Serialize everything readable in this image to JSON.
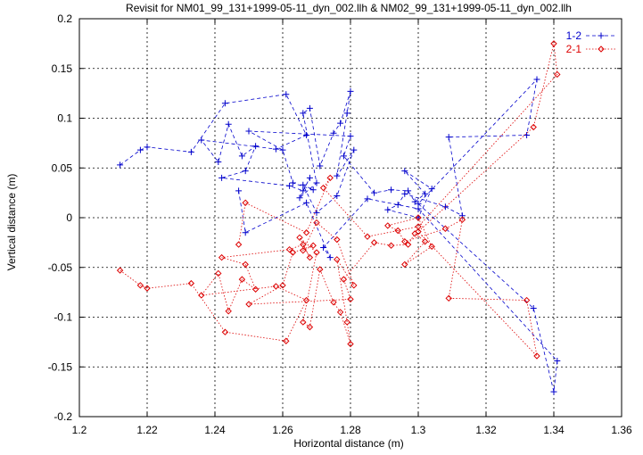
{
  "chart_data": {
    "type": "scatter",
    "title": "Revisit for NM01_99_131+1999-05-11_dyn_002.llh & NM02_99_131+1999-05-11_dyn_002.llh",
    "xlabel": "Horizontal distance (m)",
    "ylabel": "Vertical distance (m)",
    "xlim": [
      1.2,
      1.36
    ],
    "ylim": [
      -0.2,
      0.2
    ],
    "xticks": [
      "1.2",
      "1.22",
      "1.24",
      "1.26",
      "1.28",
      "1.3",
      "1.32",
      "1.34",
      "1.36"
    ],
    "yticks": [
      "-0.2",
      "-0.15",
      "-0.1",
      "-0.05",
      "0",
      "0.05",
      "0.1",
      "0.15",
      "0.2"
    ],
    "grid": true,
    "legend_position": "top-right",
    "series": [
      {
        "name": "1-2",
        "color": "#0000cc",
        "marker": "plus",
        "line": "dashed",
        "points": [
          [
            1.212,
            0.053
          ],
          [
            1.218,
            0.068
          ],
          [
            1.22,
            0.071
          ],
          [
            1.233,
            0.066
          ],
          [
            1.243,
            0.115
          ],
          [
            1.261,
            0.124
          ],
          [
            1.267,
            0.083
          ],
          [
            1.258,
            0.069
          ],
          [
            1.236,
            0.078
          ],
          [
            1.241,
            0.056
          ],
          [
            1.244,
            0.094
          ],
          [
            1.248,
            0.062
          ],
          [
            1.252,
            0.072
          ],
          [
            1.249,
            0.047
          ],
          [
            1.242,
            0.04
          ],
          [
            1.262,
            0.032
          ],
          [
            1.266,
            0.027
          ],
          [
            1.268,
            0.04
          ],
          [
            1.265,
            0.02
          ],
          [
            1.27,
            0.035
          ],
          [
            1.266,
            0.105
          ],
          [
            1.268,
            0.11
          ],
          [
            1.271,
            0.052
          ],
          [
            1.275,
            0.085
          ],
          [
            1.277,
            0.095
          ],
          [
            1.28,
            0.127
          ],
          [
            1.279,
            0.105
          ],
          [
            1.276,
            0.042
          ],
          [
            1.281,
            0.068
          ],
          [
            1.276,
            0.022
          ],
          [
            1.27,
            0.005
          ],
          [
            1.266,
            0.033
          ],
          [
            1.269,
            0.028
          ],
          [
            1.263,
            0.035
          ],
          [
            1.26,
            0.068
          ],
          [
            1.25,
            0.087
          ],
          [
            1.28,
            0.082
          ],
          [
            1.278,
            0.062
          ],
          [
            1.287,
            0.025
          ],
          [
            1.292,
            0.028
          ],
          [
            1.297,
            0.027
          ],
          [
            1.299,
            0.016
          ],
          [
            1.302,
            0.024
          ],
          [
            1.296,
            0.047
          ],
          [
            1.304,
            0.029
          ],
          [
            1.3,
            0.0
          ],
          [
            1.291,
            0.008
          ],
          [
            1.294,
            0.013
          ],
          [
            1.296,
            0.024
          ],
          [
            1.308,
            0.011
          ],
          [
            1.313,
            0.002
          ],
          [
            1.309,
            0.081
          ],
          [
            1.332,
            0.083
          ],
          [
            1.335,
            0.139
          ],
          [
            1.3,
            0.014
          ],
          [
            1.334,
            -0.091
          ],
          [
            1.34,
            -0.175
          ],
          [
            1.341,
            -0.144
          ],
          [
            1.3,
            0.009
          ],
          [
            1.285,
            0.019
          ],
          [
            1.272,
            -0.03
          ],
          [
            1.274,
            -0.04
          ],
          [
            1.267,
            0.015
          ],
          [
            1.249,
            -0.015
          ],
          [
            1.247,
            0.027
          ]
        ]
      },
      {
        "name": "2-1",
        "color": "#dd0000",
        "marker": "diamond",
        "line": "dotted",
        "points": [
          [
            1.212,
            -0.053
          ],
          [
            1.218,
            -0.068
          ],
          [
            1.22,
            -0.071
          ],
          [
            1.233,
            -0.066
          ],
          [
            1.243,
            -0.115
          ],
          [
            1.261,
            -0.124
          ],
          [
            1.267,
            -0.083
          ],
          [
            1.258,
            -0.069
          ],
          [
            1.236,
            -0.078
          ],
          [
            1.241,
            -0.056
          ],
          [
            1.244,
            -0.094
          ],
          [
            1.248,
            -0.062
          ],
          [
            1.252,
            -0.072
          ],
          [
            1.249,
            -0.047
          ],
          [
            1.242,
            -0.04
          ],
          [
            1.262,
            -0.032
          ],
          [
            1.266,
            -0.027
          ],
          [
            1.268,
            -0.04
          ],
          [
            1.265,
            -0.02
          ],
          [
            1.27,
            -0.035
          ],
          [
            1.266,
            -0.105
          ],
          [
            1.268,
            -0.11
          ],
          [
            1.271,
            -0.052
          ],
          [
            1.275,
            -0.085
          ],
          [
            1.277,
            -0.095
          ],
          [
            1.28,
            -0.127
          ],
          [
            1.279,
            -0.105
          ],
          [
            1.276,
            -0.042
          ],
          [
            1.281,
            -0.068
          ],
          [
            1.276,
            -0.022
          ],
          [
            1.27,
            -0.005
          ],
          [
            1.266,
            -0.033
          ],
          [
            1.269,
            -0.028
          ],
          [
            1.263,
            -0.035
          ],
          [
            1.26,
            -0.068
          ],
          [
            1.25,
            -0.087
          ],
          [
            1.28,
            -0.082
          ],
          [
            1.278,
            -0.062
          ],
          [
            1.287,
            -0.025
          ],
          [
            1.292,
            -0.028
          ],
          [
            1.297,
            -0.027
          ],
          [
            1.299,
            -0.016
          ],
          [
            1.302,
            -0.024
          ],
          [
            1.296,
            -0.047
          ],
          [
            1.304,
            -0.029
          ],
          [
            1.3,
            0.0
          ],
          [
            1.291,
            -0.008
          ],
          [
            1.294,
            -0.013
          ],
          [
            1.296,
            -0.024
          ],
          [
            1.308,
            -0.011
          ],
          [
            1.313,
            -0.002
          ],
          [
            1.309,
            -0.081
          ],
          [
            1.332,
            -0.083
          ],
          [
            1.335,
            -0.139
          ],
          [
            1.3,
            -0.014
          ],
          [
            1.334,
            0.091
          ],
          [
            1.34,
            0.175
          ],
          [
            1.341,
            0.144
          ],
          [
            1.3,
            -0.009
          ],
          [
            1.285,
            -0.019
          ],
          [
            1.272,
            0.03
          ],
          [
            1.274,
            0.04
          ],
          [
            1.267,
            -0.015
          ],
          [
            1.249,
            0.015
          ],
          [
            1.247,
            -0.027
          ]
        ]
      }
    ]
  }
}
